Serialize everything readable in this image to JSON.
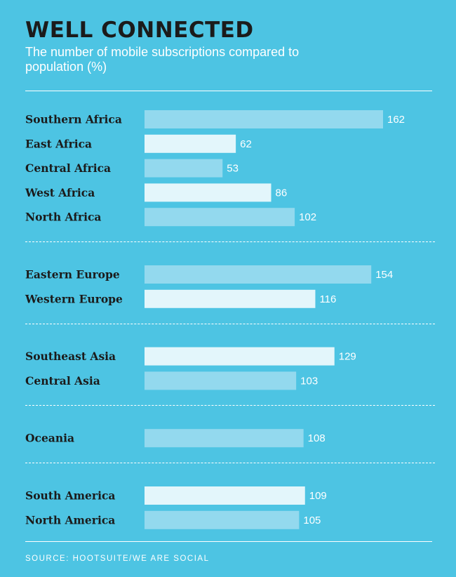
{
  "header": {
    "title": "WELL CONNECTED",
    "subtitle": "The number of mobile subscriptions compared to population (%)"
  },
  "footer": {
    "source": "SOURCE: HOOTSUITE/WE ARE SOCIAL"
  },
  "colors": {
    "background": "#4DC4E3",
    "bar_light": "#E3F6FB",
    "bar_mid": "#93D9EE",
    "text_dark": "#1B1B1B",
    "text_light": "#FFFFFF"
  },
  "chart_data": {
    "type": "bar",
    "orientation": "horizontal",
    "title": "WELL CONNECTED",
    "subtitle": "The number of mobile subscriptions compared to population (%)",
    "xlim": [
      0,
      162
    ],
    "grid": false,
    "legend": "none",
    "groups": [
      {
        "categories": [
          "Southern Africa",
          "East Africa",
          "Central Africa",
          "West Africa",
          "North Africa"
        ],
        "values": [
          162,
          62,
          53,
          86,
          102
        ],
        "shades": [
          "mid",
          "light",
          "mid",
          "light",
          "mid"
        ]
      },
      {
        "categories": [
          "Eastern Europe",
          "Western Europe"
        ],
        "values": [
          154,
          116
        ],
        "shades": [
          "mid",
          "light"
        ]
      },
      {
        "categories": [
          "Southeast Asia",
          "Central Asia"
        ],
        "values": [
          129,
          103
        ],
        "shades": [
          "light",
          "mid"
        ]
      },
      {
        "categories": [
          "Oceania"
        ],
        "values": [
          108
        ],
        "shades": [
          "mid"
        ]
      },
      {
        "categories": [
          "South America",
          "North America"
        ],
        "values": [
          109,
          105
        ],
        "shades": [
          "light",
          "mid"
        ]
      }
    ]
  }
}
